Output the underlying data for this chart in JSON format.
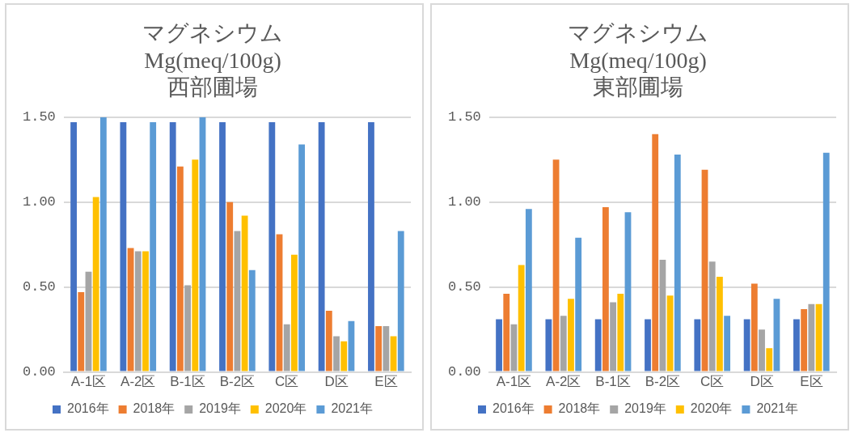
{
  "chart_data": [
    {
      "type": "bar",
      "title": "マグネシウム\nMg(meq/100g)\n西部圃場",
      "categories": [
        "A-1区",
        "A-2区",
        "B-1区",
        "B-2区",
        "C区",
        "D区",
        "E区"
      ],
      "series": [
        {
          "name": "2016年",
          "color": "#4472c4",
          "values": [
            1.47,
            1.47,
            1.47,
            1.47,
            1.47,
            1.47,
            1.47
          ]
        },
        {
          "name": "2018年",
          "color": "#ed7d31",
          "values": [
            0.47,
            0.73,
            1.21,
            1.0,
            0.81,
            0.36,
            0.27
          ]
        },
        {
          "name": "2019年",
          "color": "#a5a5a5",
          "values": [
            0.59,
            0.71,
            0.51,
            0.83,
            0.28,
            0.21,
            0.27
          ]
        },
        {
          "name": "2020年",
          "color": "#ffc000",
          "values": [
            1.03,
            0.71,
            1.25,
            0.92,
            0.69,
            0.18,
            0.21
          ]
        },
        {
          "name": "2021年",
          "color": "#5b9bd5",
          "values": [
            1.5,
            1.47,
            1.5,
            0.6,
            1.34,
            0.3,
            0.83
          ]
        }
      ],
      "ylim": [
        0,
        1.5
      ],
      "yticks": [
        {
          "value": 0,
          "label": "0.00"
        },
        {
          "value": 0.5,
          "label": "0.50"
        },
        {
          "value": 1,
          "label": "1.00"
        },
        {
          "value": 1.5,
          "label": "1.50"
        }
      ],
      "grid": "y",
      "legend": "bottom"
    },
    {
      "type": "bar",
      "title": "マグネシウム\nMg(meq/100g)\n東部圃場",
      "categories": [
        "A-1区",
        "A-2区",
        "B-1区",
        "B-2区",
        "C区",
        "D区",
        "E区"
      ],
      "series": [
        {
          "name": "2016年",
          "color": "#4472c4",
          "values": [
            0.31,
            0.31,
            0.31,
            0.31,
            0.31,
            0.31,
            0.31
          ]
        },
        {
          "name": "2018年",
          "color": "#ed7d31",
          "values": [
            0.46,
            1.25,
            0.97,
            1.4,
            1.19,
            0.52,
            0.37
          ]
        },
        {
          "name": "2019年",
          "color": "#a5a5a5",
          "values": [
            0.28,
            0.33,
            0.41,
            0.66,
            0.65,
            0.25,
            0.4
          ]
        },
        {
          "name": "2020年",
          "color": "#ffc000",
          "values": [
            0.63,
            0.43,
            0.46,
            0.45,
            0.56,
            0.14,
            0.4
          ]
        },
        {
          "name": "2021年",
          "color": "#5b9bd5",
          "values": [
            0.96,
            0.79,
            0.94,
            1.28,
            0.33,
            0.43,
            1.29
          ]
        }
      ],
      "ylim": [
        0,
        1.5
      ],
      "yticks": [
        {
          "value": 0,
          "label": "0.00"
        },
        {
          "value": 0.5,
          "label": "0.50"
        },
        {
          "value": 1,
          "label": "1.00"
        },
        {
          "value": 1.5,
          "label": "1.50"
        }
      ],
      "grid": "y",
      "legend": "bottom"
    }
  ]
}
